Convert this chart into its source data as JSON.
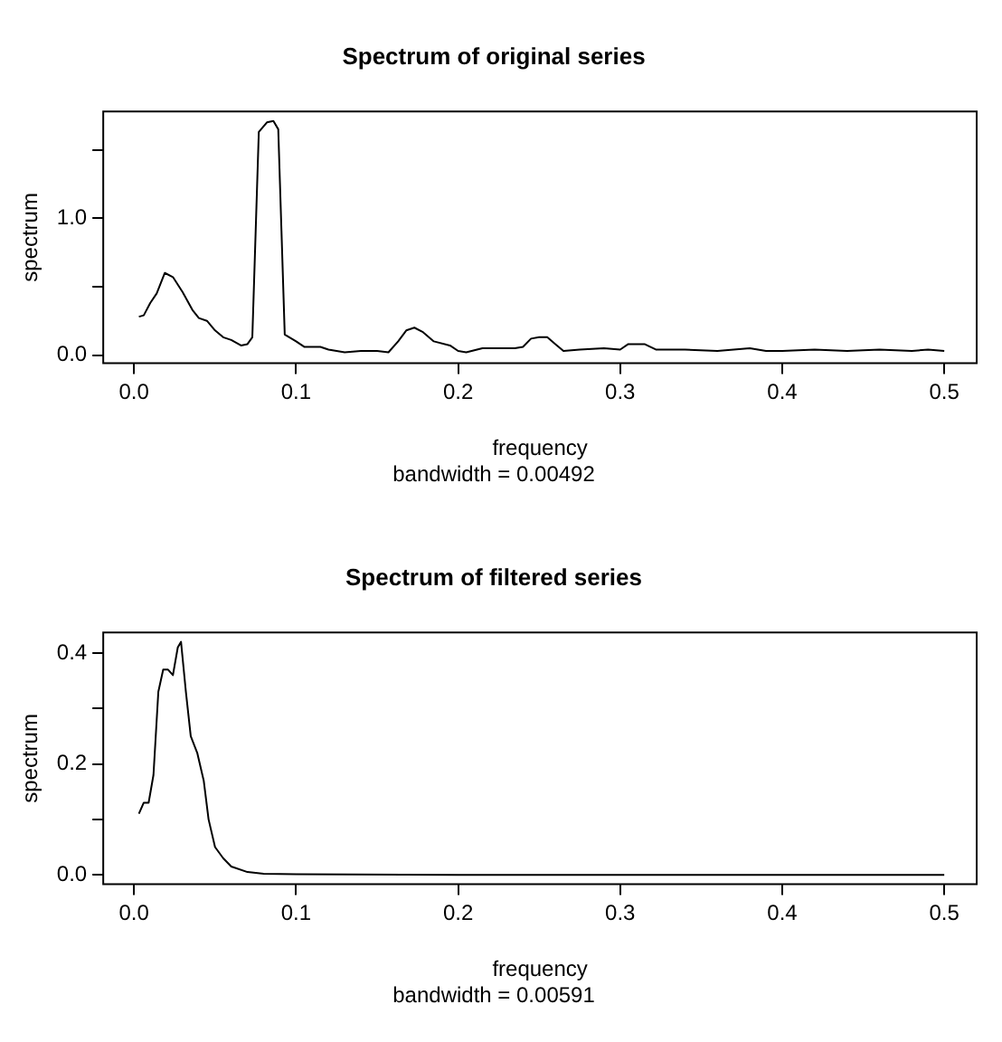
{
  "chart_data": [
    {
      "type": "line",
      "title": "Spectrum of original series",
      "xlabel": "frequency",
      "ylabel": "spectrum",
      "annotations": [
        "bandwidth = 0.00492"
      ],
      "x": [
        0.003,
        0.006,
        0.01,
        0.014,
        0.019,
        0.024,
        0.03,
        0.036,
        0.04,
        0.045,
        0.05,
        0.055,
        0.06,
        0.066,
        0.07,
        0.073,
        0.077,
        0.082,
        0.086,
        0.089,
        0.093,
        0.1,
        0.105,
        0.11,
        0.115,
        0.12,
        0.13,
        0.14,
        0.15,
        0.157,
        0.163,
        0.168,
        0.173,
        0.178,
        0.185,
        0.195,
        0.2,
        0.205,
        0.215,
        0.225,
        0.235,
        0.24,
        0.245,
        0.25,
        0.255,
        0.26,
        0.265,
        0.275,
        0.29,
        0.3,
        0.305,
        0.315,
        0.322,
        0.34,
        0.36,
        0.38,
        0.39,
        0.4,
        0.42,
        0.44,
        0.46,
        0.48,
        0.49,
        0.5
      ],
      "series": [
        {
          "color": "#000000",
          "values": [
            0.28,
            0.29,
            0.38,
            0.45,
            0.6,
            0.57,
            0.46,
            0.33,
            0.27,
            0.25,
            0.18,
            0.13,
            0.11,
            0.07,
            0.08,
            0.13,
            1.63,
            1.7,
            1.71,
            1.65,
            0.15,
            0.1,
            0.06,
            0.06,
            0.06,
            0.04,
            0.02,
            0.03,
            0.03,
            0.02,
            0.1,
            0.18,
            0.2,
            0.17,
            0.1,
            0.07,
            0.03,
            0.02,
            0.05,
            0.05,
            0.05,
            0.06,
            0.12,
            0.13,
            0.13,
            0.08,
            0.03,
            0.04,
            0.05,
            0.04,
            0.08,
            0.08,
            0.04,
            0.04,
            0.03,
            0.05,
            0.03,
            0.03,
            0.04,
            0.03,
            0.04,
            0.03,
            0.04,
            0.03
          ]
        }
      ],
      "xlim": [
        -0.019,
        0.52
      ],
      "xticks": [
        {
          "value": 0,
          "label": "0.0"
        },
        0.1,
        0.2,
        0.3,
        0.4,
        0.5
      ],
      "ylim": [
        -0.06,
        1.78
      ],
      "yticks": [
        {
          "value": 0,
          "label": "0.0"
        },
        {
          "value": 0.5,
          "label": null
        },
        {
          "value": 1,
          "label": "1.0"
        },
        {
          "value": 1.5,
          "label": null
        }
      ],
      "grid": false,
      "legend": false,
      "marker": "none",
      "line_style": "solid"
    },
    {
      "type": "line",
      "title": "Spectrum of filtered series",
      "xlabel": "frequency",
      "ylabel": "spectrum",
      "annotations": [
        "bandwidth = 0.00591"
      ],
      "x": [
        0.003,
        0.006,
        0.009,
        0.012,
        0.015,
        0.018,
        0.021,
        0.024,
        0.027,
        0.029,
        0.032,
        0.035,
        0.039,
        0.043,
        0.046,
        0.05,
        0.055,
        0.06,
        0.07,
        0.08,
        0.1,
        0.2,
        0.3,
        0.4,
        0.5
      ],
      "series": [
        {
          "color": "#000000",
          "values": [
            0.11,
            0.13,
            0.13,
            0.18,
            0.33,
            0.37,
            0.37,
            0.36,
            0.41,
            0.42,
            0.33,
            0.25,
            0.22,
            0.17,
            0.1,
            0.05,
            0.03,
            0.015,
            0.005,
            0.002,
            0.001,
            0,
            0,
            0,
            0
          ]
        }
      ],
      "xlim": [
        -0.019,
        0.52
      ],
      "xticks": [
        {
          "value": 0,
          "label": "0.0"
        },
        0.1,
        0.2,
        0.3,
        0.4,
        0.5
      ],
      "ylim": [
        -0.017,
        0.437
      ],
      "yticks": [
        {
          "value": 0,
          "label": "0.0"
        },
        {
          "value": 0.1,
          "label": null
        },
        0.2,
        {
          "value": 0.3,
          "label": null
        },
        0.4
      ],
      "grid": false,
      "legend": false,
      "marker": "none",
      "line_style": "solid"
    }
  ]
}
